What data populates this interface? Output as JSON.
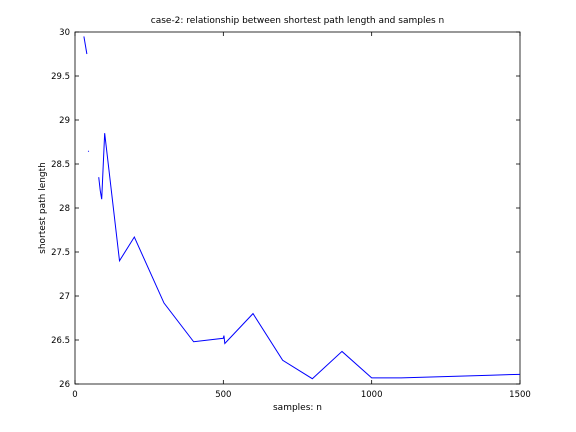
{
  "chart_data": {
    "type": "line",
    "title": "case-2: relationship between shortest path length and samples n",
    "xlabel": "samples: n",
    "ylabel": "shortest path length",
    "xlim": [
      0,
      1500
    ],
    "ylim": [
      26,
      30
    ],
    "xticks": [
      0,
      500,
      1000,
      1500
    ],
    "xtick_labels": [
      "0",
      "500",
      "1000",
      "1500"
    ],
    "yticks": [
      26,
      26.5,
      27,
      27.5,
      28,
      28.5,
      29,
      29.5,
      30
    ],
    "ytick_labels": [
      "26",
      "26.5",
      "27",
      "27.5",
      "28",
      "28.5",
      "29",
      "29.5",
      "30"
    ],
    "grid": false,
    "line_color": "#0000ff",
    "segments": [
      {
        "x": [
          30,
          40
        ],
        "y": [
          29.95,
          29.75
        ]
      },
      {
        "x": [
          45,
          46
        ],
        "y": [
          28.65,
          28.64
        ]
      },
      {
        "x": [
          80,
          85,
          90,
          100,
          150,
          200,
          300,
          400,
          500,
          502,
          505,
          600,
          700,
          800,
          900,
          1000,
          1100,
          1200,
          1300,
          1400,
          1500
        ],
        "y": [
          28.35,
          28.2,
          28.1,
          28.85,
          27.4,
          27.67,
          26.92,
          26.48,
          26.52,
          26.55,
          26.46,
          26.8,
          26.27,
          26.06,
          26.37,
          26.07,
          26.07,
          26.08,
          26.09,
          26.1,
          26.11
        ]
      }
    ]
  }
}
